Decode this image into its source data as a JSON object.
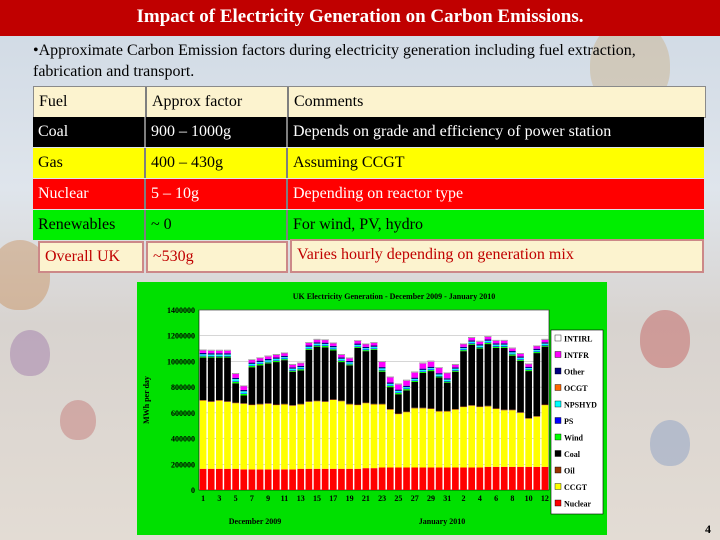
{
  "title": "Impact of Electricity Generation on Carbon Emissions.",
  "intro": "•Approximate Carbon Emission factors during electricity generation including fuel extraction, fabrication and transport.",
  "table": {
    "header": [
      "Fuel",
      "Approx factor",
      "Comments"
    ],
    "rows": [
      [
        "Coal",
        "900 – 1000g",
        "Depends on grade and efficiency of power station"
      ],
      [
        "Gas",
        "400 – 430g",
        "Assuming CCGT"
      ],
      [
        "Nuclear",
        "5 – 10g",
        "Depending on reactor type"
      ],
      [
        "Renewables",
        "~ 0",
        "For wind, PV, hydro"
      ]
    ],
    "overall": [
      "Overall UK",
      "~530g",
      "Varies hourly depending on generation mix"
    ]
  },
  "page_number": "4",
  "chart_data": {
    "type": "bar",
    "stacked": true,
    "title": "UK Electricity Generation - December 2009 - January 2010",
    "xlabel_left": "December 2009",
    "xlabel_right": "January 2010",
    "ylabel": "MWh per day",
    "ylim": [
      0,
      1400000
    ],
    "yticks": [
      "0",
      "200000",
      "400000",
      "600000",
      "800000",
      "1000000",
      "1200000",
      "1400000"
    ],
    "x": [
      "1",
      "2",
      "3",
      "4",
      "5",
      "6",
      "7",
      "8",
      "9",
      "10",
      "11",
      "12",
      "13",
      "14",
      "15",
      "16",
      "17",
      "18",
      "19",
      "20",
      "21",
      "22",
      "23",
      "24",
      "25",
      "26",
      "27",
      "28",
      "29",
      "30",
      "31",
      "1",
      "2",
      "3",
      "4",
      "5",
      "6",
      "7",
      "8",
      "9",
      "10",
      "11",
      "12"
    ],
    "xtick_labels": [
      "1",
      "3",
      "5",
      "7",
      "9",
      "11",
      "13",
      "15",
      "17",
      "19",
      "21",
      "23",
      "25",
      "27",
      "29",
      "31",
      "2",
      "4",
      "6",
      "8",
      "10",
      "12"
    ],
    "legend_order": [
      "INTIRL",
      "INTFR",
      "Other",
      "OCGT",
      "NPSHYD",
      "PS",
      "Wind",
      "Coal",
      "Oil",
      "CCGT",
      "Nuclear"
    ],
    "legend_position": "right",
    "colors": {
      "Nuclear": "#ff0000",
      "CCGT": "#ffff00",
      "Oil": "#993300",
      "Coal": "#000000",
      "Wind": "#00ff00",
      "PS": "#0000ff",
      "NPSHYD": "#00ffff",
      "OCGT": "#ff6600",
      "Other": "#000080",
      "INTFR": "#ff00ff",
      "INTIRL": "#ffffff"
    },
    "series": [
      {
        "name": "Nuclear",
        "values": [
          165000,
          165000,
          165000,
          165000,
          165000,
          160000,
          160000,
          160000,
          160000,
          160000,
          160000,
          160000,
          165000,
          165000,
          165000,
          165000,
          165000,
          165000,
          165000,
          165000,
          170000,
          170000,
          175000,
          175000,
          175000,
          175000,
          175000,
          175000,
          175000,
          175000,
          175000,
          175000,
          175000,
          175000,
          175000,
          180000,
          180000,
          180000,
          180000,
          180000,
          180000,
          180000,
          180000
        ]
      },
      {
        "name": "CCGT",
        "values": [
          530000,
          520000,
          530000,
          520000,
          510000,
          510000,
          500000,
          505000,
          510000,
          500000,
          505000,
          495000,
          500000,
          520000,
          525000,
          520000,
          535000,
          525000,
          500000,
          495000,
          505000,
          495000,
          490000,
          450000,
          415000,
          430000,
          460000,
          460000,
          455000,
          435000,
          435000,
          450000,
          470000,
          480000,
          470000,
          470000,
          450000,
          440000,
          440000,
          420000,
          375000,
          390000,
          480000
        ]
      },
      {
        "name": "Oil",
        "values": [
          5000,
          5000,
          5000,
          5000,
          5000,
          5000,
          5000,
          5000,
          5000,
          5000,
          5000,
          5000,
          5000,
          5000,
          5000,
          5000,
          5000,
          5000,
          5000,
          5000,
          5000,
          5000,
          5000,
          5000,
          5000,
          5000,
          5000,
          5000,
          5000,
          5000,
          5000,
          5000,
          5000,
          5000,
          5000,
          5000,
          5000,
          5000,
          5000,
          5000,
          5000,
          5000,
          5000
        ]
      },
      {
        "name": "Coal",
        "values": [
          330000,
          340000,
          330000,
          340000,
          150000,
          60000,
          290000,
          300000,
          310000,
          330000,
          340000,
          260000,
          260000,
          400000,
          420000,
          420000,
          380000,
          300000,
          300000,
          440000,
          400000,
          420000,
          250000,
          170000,
          150000,
          165000,
          200000,
          270000,
          290000,
          260000,
          220000,
          290000,
          430000,
          470000,
          450000,
          480000,
          470000,
          480000,
          420000,
          400000,
          365000,
          490000,
          450000
        ]
      },
      {
        "name": "Wind",
        "values": [
          10000,
          8000,
          8000,
          8000,
          12000,
          12000,
          10000,
          10000,
          8000,
          10000,
          8000,
          8000,
          10000,
          8000,
          8000,
          10000,
          10000,
          10000,
          8000,
          8000,
          8000,
          8000,
          10000,
          10000,
          10000,
          10000,
          8000,
          8000,
          8000,
          8000,
          8000,
          8000,
          8000,
          8000,
          8000,
          10000,
          10000,
          10000,
          10000,
          8000,
          8000,
          8000,
          8000
        ]
      },
      {
        "name": "PS",
        "values": [
          5000,
          5000,
          5000,
          5000,
          5000,
          5000,
          5000,
          5000,
          5000,
          5000,
          5000,
          5000,
          5000,
          5000,
          5000,
          5000,
          5000,
          5000,
          5000,
          5000,
          5000,
          5000,
          5000,
          5000,
          5000,
          5000,
          5000,
          5000,
          5000,
          5000,
          5000,
          5000,
          5000,
          5000,
          5000,
          5000,
          5000,
          5000,
          5000,
          5000,
          5000,
          5000,
          5000
        ]
      },
      {
        "name": "NPSHYD",
        "values": [
          10000,
          10000,
          10000,
          10000,
          15000,
          15000,
          10000,
          10000,
          10000,
          10000,
          10000,
          10000,
          10000,
          10000,
          10000,
          10000,
          10000,
          10000,
          10000,
          10000,
          10000,
          10000,
          10000,
          10000,
          10000,
          10000,
          10000,
          10000,
          10000,
          10000,
          10000,
          10000,
          10000,
          10000,
          10000,
          10000,
          10000,
          10000,
          10000,
          10000,
          10000,
          10000,
          10000
        ]
      },
      {
        "name": "OCGT",
        "values": [
          1000,
          1000,
          1000,
          1000,
          1000,
          1000,
          1000,
          1000,
          1000,
          1000,
          1000,
          1000,
          1000,
          1000,
          1000,
          1000,
          1000,
          1000,
          1000,
          1000,
          1000,
          1000,
          1000,
          1000,
          1000,
          1000,
          1000,
          1000,
          1000,
          1000,
          1000,
          1000,
          1000,
          1000,
          1000,
          1000,
          1000,
          1000,
          1000,
          1000,
          1000,
          1000,
          1000
        ]
      },
      {
        "name": "Other",
        "values": [
          10000,
          10000,
          10000,
          10000,
          10000,
          10000,
          10000,
          10000,
          10000,
          10000,
          10000,
          10000,
          10000,
          10000,
          10000,
          10000,
          10000,
          10000,
          10000,
          10000,
          10000,
          10000,
          10000,
          10000,
          10000,
          10000,
          10000,
          10000,
          10000,
          10000,
          10000,
          10000,
          10000,
          10000,
          10000,
          10000,
          10000,
          10000,
          10000,
          10000,
          10000,
          10000,
          10000
        ]
      },
      {
        "name": "INTFR",
        "values": [
          20000,
          20000,
          20000,
          20000,
          30000,
          30000,
          20000,
          20000,
          20000,
          20000,
          20000,
          20000,
          20000,
          20000,
          20000,
          20000,
          20000,
          20000,
          20000,
          20000,
          20000,
          20000,
          40000,
          40000,
          40000,
          40000,
          40000,
          40000,
          40000,
          40000,
          40000,
          20000,
          20000,
          20000,
          20000,
          20000,
          20000,
          20000,
          20000,
          20000,
          20000,
          20000,
          20000
        ]
      },
      {
        "name": "INTIRL",
        "values": [
          5000,
          5000,
          5000,
          5000,
          5000,
          5000,
          5000,
          5000,
          5000,
          5000,
          5000,
          5000,
          5000,
          5000,
          5000,
          5000,
          5000,
          5000,
          5000,
          5000,
          5000,
          5000,
          5000,
          5000,
          5000,
          5000,
          5000,
          5000,
          5000,
          5000,
          5000,
          5000,
          5000,
          5000,
          5000,
          5000,
          5000,
          5000,
          5000,
          5000,
          5000,
          5000,
          5000
        ]
      }
    ]
  }
}
